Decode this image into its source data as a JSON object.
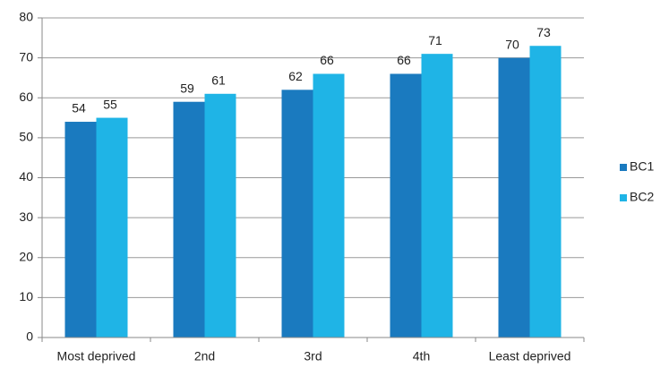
{
  "chart_data": {
    "type": "bar",
    "categories": [
      "Most deprived",
      "2nd",
      "3rd",
      "4th",
      "Least deprived"
    ],
    "series": [
      {
        "name": "BC1",
        "color": "#1a7abf",
        "values": [
          54,
          59,
          62,
          66,
          70
        ]
      },
      {
        "name": "BC2",
        "color": "#1fb4e6",
        "values": [
          55,
          61,
          66,
          71,
          73
        ]
      }
    ],
    "ylim": [
      0,
      80
    ],
    "yticks": [
      0,
      10,
      20,
      30,
      40,
      50,
      60,
      70,
      80
    ],
    "grid": true,
    "legend": "right"
  }
}
